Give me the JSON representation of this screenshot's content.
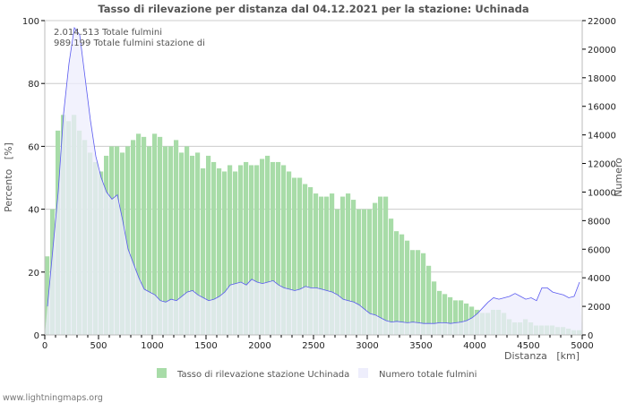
{
  "footer": "www.lightningmaps.org",
  "annotations": [
    "2.014.513 Totale fulmini",
    "989.199 Totale fulmini stazione di"
  ],
  "chart_data": {
    "type": "bar",
    "title": "Tasso di rilevazione per distanza dal 04.12.2021 per la stazione: Uchinada",
    "xlabel": "Distanza   [km]",
    "ylabel": "Percento   [%]",
    "y2label": "Numero",
    "xlim": [
      0,
      5000
    ],
    "ylim": [
      0,
      100
    ],
    "y2lim": [
      0,
      22000
    ],
    "grid": true,
    "legend_position": "bottom",
    "x_ticks": [
      "0",
      "500",
      "1000",
      "1500",
      "2000",
      "2500",
      "3000",
      "3500",
      "4000",
      "4500",
      "5000"
    ],
    "y_ticks": [
      "0",
      "20",
      "40",
      "60",
      "80",
      "100"
    ],
    "y2_ticks": [
      "0",
      "2000",
      "4000",
      "6000",
      "8000",
      "10000",
      "12000",
      "14000",
      "16000",
      "18000",
      "20000",
      "22000"
    ],
    "bin_width": 50,
    "colors": {
      "rate": "#a8dca8",
      "total_fill": "#eeeefc",
      "total_line": "#5a5af0"
    },
    "series": [
      {
        "name": "Tasso di rilevazione stazione Uchinada",
        "axis": "left",
        "type": "bar",
        "values": [
          25,
          40,
          65,
          70,
          68,
          70,
          65,
          62,
          58,
          55,
          52,
          57,
          60,
          60,
          58,
          60,
          62,
          64,
          63,
          60,
          64,
          63,
          60,
          60,
          62,
          58,
          60,
          57,
          58,
          53,
          57,
          55,
          53,
          52,
          54,
          52,
          54,
          55,
          54,
          54,
          56,
          57,
          55,
          55,
          54,
          52,
          50,
          50,
          48,
          47,
          45,
          44,
          44,
          45,
          40,
          44,
          45,
          43,
          40,
          40,
          40,
          42,
          44,
          44,
          37,
          33,
          32,
          30,
          27,
          27,
          26,
          22,
          17,
          14,
          13,
          12,
          11,
          11,
          10,
          9,
          8,
          7,
          7,
          8,
          8,
          7,
          5,
          4,
          4,
          5,
          4,
          3,
          3,
          3,
          3,
          2.5,
          2.5,
          2,
          1.5,
          1.5
        ]
      },
      {
        "name": "Numero totale fulmini",
        "axis": "right",
        "type": "area",
        "values": [
          2000,
          6000,
          10000,
          15500,
          19000,
          21500,
          21000,
          18000,
          15000,
          12500,
          11000,
          10000,
          9500,
          9800,
          8000,
          6000,
          5000,
          4000,
          3200,
          3000,
          2800,
          2400,
          2300,
          2500,
          2400,
          2700,
          3000,
          3100,
          2800,
          2600,
          2400,
          2500,
          2700,
          3000,
          3500,
          3600,
          3700,
          3500,
          3900,
          3700,
          3600,
          3700,
          3800,
          3500,
          3300,
          3200,
          3100,
          3200,
          3400,
          3300,
          3300,
          3200,
          3100,
          3000,
          2800,
          2500,
          2400,
          2300,
          2100,
          1800,
          1500,
          1400,
          1200,
          1000,
          900,
          950,
          900,
          850,
          900,
          850,
          800,
          800,
          800,
          850,
          850,
          800,
          850,
          900,
          1000,
          1200,
          1500,
          1900,
          2300,
          2600,
          2500,
          2600,
          2700,
          2900,
          2700,
          2500,
          2600,
          2400,
          3300,
          3300,
          3000,
          2900,
          2800,
          2600,
          2700,
          3700
        ]
      }
    ]
  }
}
